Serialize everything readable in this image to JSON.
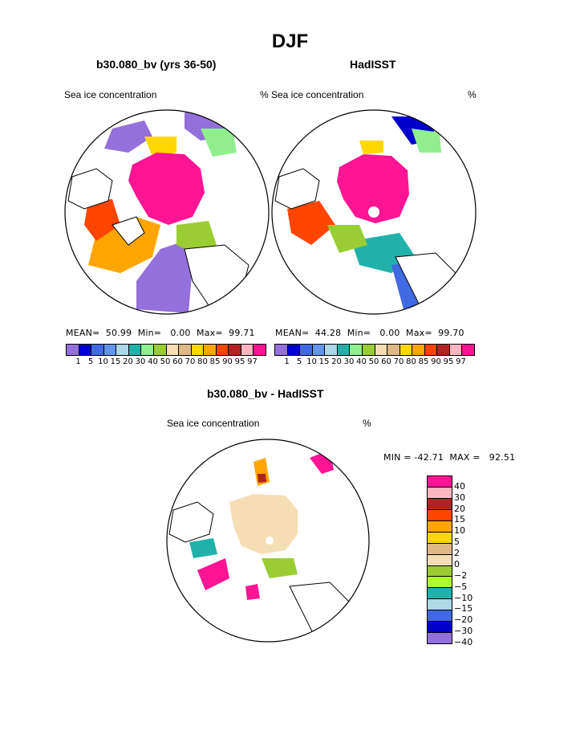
{
  "title": "DJF",
  "panels": [
    {
      "subtitle": "b30.080_bv (yrs 36-50)",
      "var_label": "Sea ice concentration",
      "units": "%",
      "stats": "MEAN=  50.99  Min=   0.00  Max=  99.71"
    },
    {
      "subtitle": "HadISST",
      "var_label": "Sea ice concentration",
      "units": "%",
      "stats": "MEAN=  44.28  Min=   0.00  Max=  99.70"
    }
  ],
  "colorbar": {
    "labels": [
      "1",
      "5",
      "10",
      "15",
      "20",
      "30",
      "40",
      "50",
      "60",
      "70",
      "80",
      "85",
      "90",
      "95",
      "97"
    ],
    "colors": [
      "#9370DB",
      "#0000CD",
      "#4169E1",
      "#6495ED",
      "#ADD8E6",
      "#20B2AA",
      "#90EE90",
      "#9ACD32",
      "#F5DEB3",
      "#DEB887",
      "#FFD700",
      "#FFA500",
      "#FF4500",
      "#B22222",
      "#FFB6C1",
      "#FF1493"
    ]
  },
  "diff_panel": {
    "subtitle": "b30.080_bv - HadISST",
    "var_label": "Sea ice concentration",
    "units": "%",
    "stats": "MIN = -42.71  MAX =   92.51",
    "levels": [
      "40",
      "30",
      "20",
      "15",
      "10",
      "5",
      "2",
      "0",
      "−2",
      "−5",
      "−10",
      "−15",
      "−20",
      "−30",
      "−40"
    ],
    "colors": [
      "#FF1493",
      "#FFB6C1",
      "#B22222",
      "#FF4500",
      "#FFA500",
      "#FFD700",
      "#DEB887",
      "#F5DEB3",
      "#9ACD32",
      "#ADFF2F",
      "#20B2AA",
      "#ADD8E6",
      "#4169E1",
      "#0000CD",
      "#9370DB"
    ]
  }
}
